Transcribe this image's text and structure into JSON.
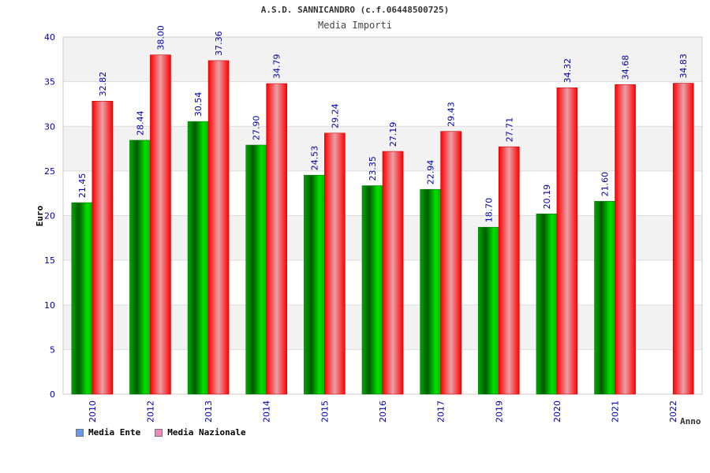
{
  "header": {
    "title": "A.S.D. SANNICANDRO (c.f.06448500725)",
    "subtitle": "Media Importi"
  },
  "legend": {
    "items": [
      {
        "label": "Media Ente",
        "color": "#6699ee"
      },
      {
        "label": "Media Nazionale",
        "color": "#ee88bb"
      }
    ]
  },
  "chart_data": {
    "type": "bar",
    "title": "Media Importi",
    "xlabel": "Anno",
    "ylabel": "Euro",
    "ylim": [
      0,
      40
    ],
    "yticks": [
      0,
      5,
      10,
      15,
      20,
      25,
      30,
      35,
      40
    ],
    "categories": [
      "2010",
      "2012",
      "2013",
      "2014",
      "2015",
      "2016",
      "2017",
      "2019",
      "2020",
      "2021",
      "2022"
    ],
    "series": [
      {
        "name": "Media Ente",
        "values": [
          21.45,
          28.44,
          30.54,
          27.9,
          24.53,
          23.35,
          22.94,
          18.7,
          20.19,
          21.6,
          null
        ],
        "labels": [
          "21.45",
          "28.44",
          "30.54",
          "27.90",
          "24.53",
          "23.35",
          "22.94",
          "18.70",
          "20.19",
          "21.60",
          ""
        ],
        "bar_color": "#00cc00"
      },
      {
        "name": "Media Nazionale",
        "values": [
          32.82,
          38.0,
          37.36,
          34.79,
          29.24,
          27.19,
          29.43,
          27.71,
          34.32,
          34.68,
          34.83
        ],
        "labels": [
          "32.82",
          "38.00",
          "37.36",
          "34.79",
          "29.24",
          "27.19",
          "29.43",
          "27.71",
          "34.32",
          "34.68",
          "34.83"
        ],
        "bar_color": "#ee1111"
      }
    ],
    "grid": true,
    "legend_position": "bottom-left"
  }
}
